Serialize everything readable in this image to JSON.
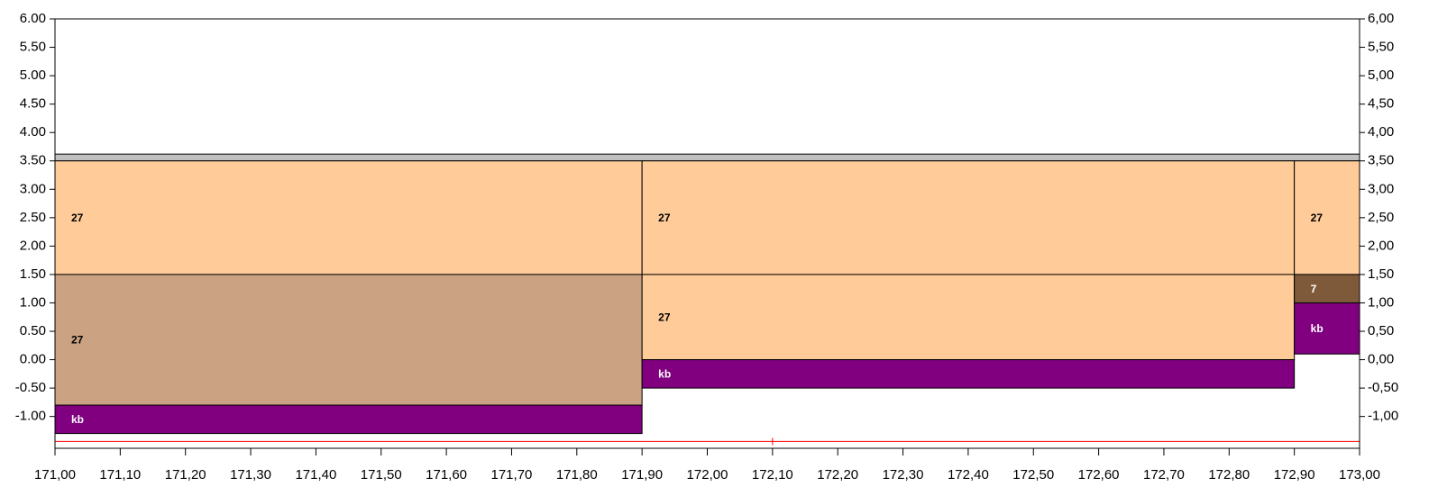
{
  "chart_data": {
    "type": "blocks",
    "xlim": [
      171.0,
      173.0
    ],
    "ylim": [
      -1.56,
      6.0
    ],
    "xticks": [
      {
        "value": 171.0,
        "label": "171,00"
      },
      {
        "value": 171.1,
        "label": "171,10"
      },
      {
        "value": 171.2,
        "label": "171,20"
      },
      {
        "value": 171.3,
        "label": "171,30"
      },
      {
        "value": 171.4,
        "label": "171,40"
      },
      {
        "value": 171.5,
        "label": "171,50"
      },
      {
        "value": 171.6,
        "label": "171,60"
      },
      {
        "value": 171.7,
        "label": "171,70"
      },
      {
        "value": 171.8,
        "label": "171,80"
      },
      {
        "value": 171.9,
        "label": "171,90"
      },
      {
        "value": 172.0,
        "label": "172,00"
      },
      {
        "value": 172.1,
        "label": "172,10"
      },
      {
        "value": 172.2,
        "label": "172,20"
      },
      {
        "value": 172.3,
        "label": "172,30"
      },
      {
        "value": 172.4,
        "label": "172,40"
      },
      {
        "value": 172.5,
        "label": "172,50"
      },
      {
        "value": 172.6,
        "label": "172,60"
      },
      {
        "value": 172.7,
        "label": "172,70"
      },
      {
        "value": 172.8,
        "label": "172,80"
      },
      {
        "value": 172.9,
        "label": "172,90"
      },
      {
        "value": 173.0,
        "label": "173,00"
      }
    ],
    "yticks": [
      {
        "value": 6.0,
        "label": "6.00"
      },
      {
        "value": 5.5,
        "label": "5.50"
      },
      {
        "value": 5.0,
        "label": "5.00"
      },
      {
        "value": 4.5,
        "label": "4.50"
      },
      {
        "value": 4.0,
        "label": "4.00"
      },
      {
        "value": 3.5,
        "label": "3.50"
      },
      {
        "value": 3.0,
        "label": "3.00"
      },
      {
        "value": 2.5,
        "label": "2.50"
      },
      {
        "value": 2.0,
        "label": "2.00"
      },
      {
        "value": 1.5,
        "label": "1.50"
      },
      {
        "value": 1.0,
        "label": "1.00"
      },
      {
        "value": 0.5,
        "label": "0.50"
      },
      {
        "value": 0.0,
        "label": "0.00"
      },
      {
        "value": -0.5,
        "label": "-0.50"
      },
      {
        "value": -1.0,
        "label": "-1.00"
      }
    ],
    "y2ticks": [
      {
        "value": 6.0,
        "label": "6,00"
      },
      {
        "value": 5.5,
        "label": "5,50"
      },
      {
        "value": 5.0,
        "label": "5,00"
      },
      {
        "value": 4.5,
        "label": "4,50"
      },
      {
        "value": 4.0,
        "label": "4,00"
      },
      {
        "value": 3.5,
        "label": "3,50"
      },
      {
        "value": 3.0,
        "label": "3,00"
      },
      {
        "value": 2.5,
        "label": "2,50"
      },
      {
        "value": 2.0,
        "label": "2,00"
      },
      {
        "value": 1.5,
        "label": "1,50"
      },
      {
        "value": 1.0,
        "label": "1,00"
      },
      {
        "value": 0.5,
        "label": "0,50"
      },
      {
        "value": 0.0,
        "label": "0,00"
      },
      {
        "value": -0.5,
        "label": "-0,50"
      },
      {
        "value": -1.0,
        "label": "-1,00"
      }
    ],
    "blocks": [
      {
        "x0": 171.0,
        "x1": 173.0,
        "y0": 3.5,
        "y1": 3.62,
        "color": "#c0c0c0"
      },
      {
        "x0": 171.0,
        "x1": 171.9,
        "y0": 1.5,
        "y1": 3.5,
        "color": "#ffcc99",
        "label": "27",
        "label_color": "#000000"
      },
      {
        "x0": 171.0,
        "x1": 171.9,
        "y0": -0.8,
        "y1": 1.5,
        "color": "#cba383",
        "label": "27",
        "label_color": "#000000"
      },
      {
        "x0": 171.0,
        "x1": 171.9,
        "y0": -1.3,
        "y1": -0.8,
        "color": "#800080",
        "label": "kb",
        "label_color": "#ffffff"
      },
      {
        "x0": 171.9,
        "x1": 172.9,
        "y0": 1.5,
        "y1": 3.5,
        "color": "#ffcc99",
        "label": "27",
        "label_color": "#000000"
      },
      {
        "x0": 171.9,
        "x1": 172.9,
        "y0": 0.0,
        "y1": 1.5,
        "color": "#ffcc99",
        "label": "27",
        "label_color": "#000000"
      },
      {
        "x0": 171.9,
        "x1": 172.9,
        "y0": -0.5,
        "y1": 0.0,
        "color": "#800080",
        "label": "kb",
        "label_color": "#ffffff"
      },
      {
        "x0": 172.9,
        "x1": 173.0,
        "y0": 1.5,
        "y1": 3.5,
        "color": "#ffcc99",
        "label": "27",
        "label_color": "#000000"
      },
      {
        "x0": 172.9,
        "x1": 173.0,
        "y0": 1.0,
        "y1": 1.5,
        "color": "#7f5a3a",
        "label": "7",
        "label_color": "#ffffff"
      },
      {
        "x0": 172.9,
        "x1": 173.0,
        "y0": 0.1,
        "y1": 1.0,
        "color": "#800080",
        "label": "kb",
        "label_color": "#ffffff"
      }
    ],
    "reference_line": {
      "y": -1.44,
      "x_marker": 172.1,
      "color": "#ff0000"
    }
  }
}
